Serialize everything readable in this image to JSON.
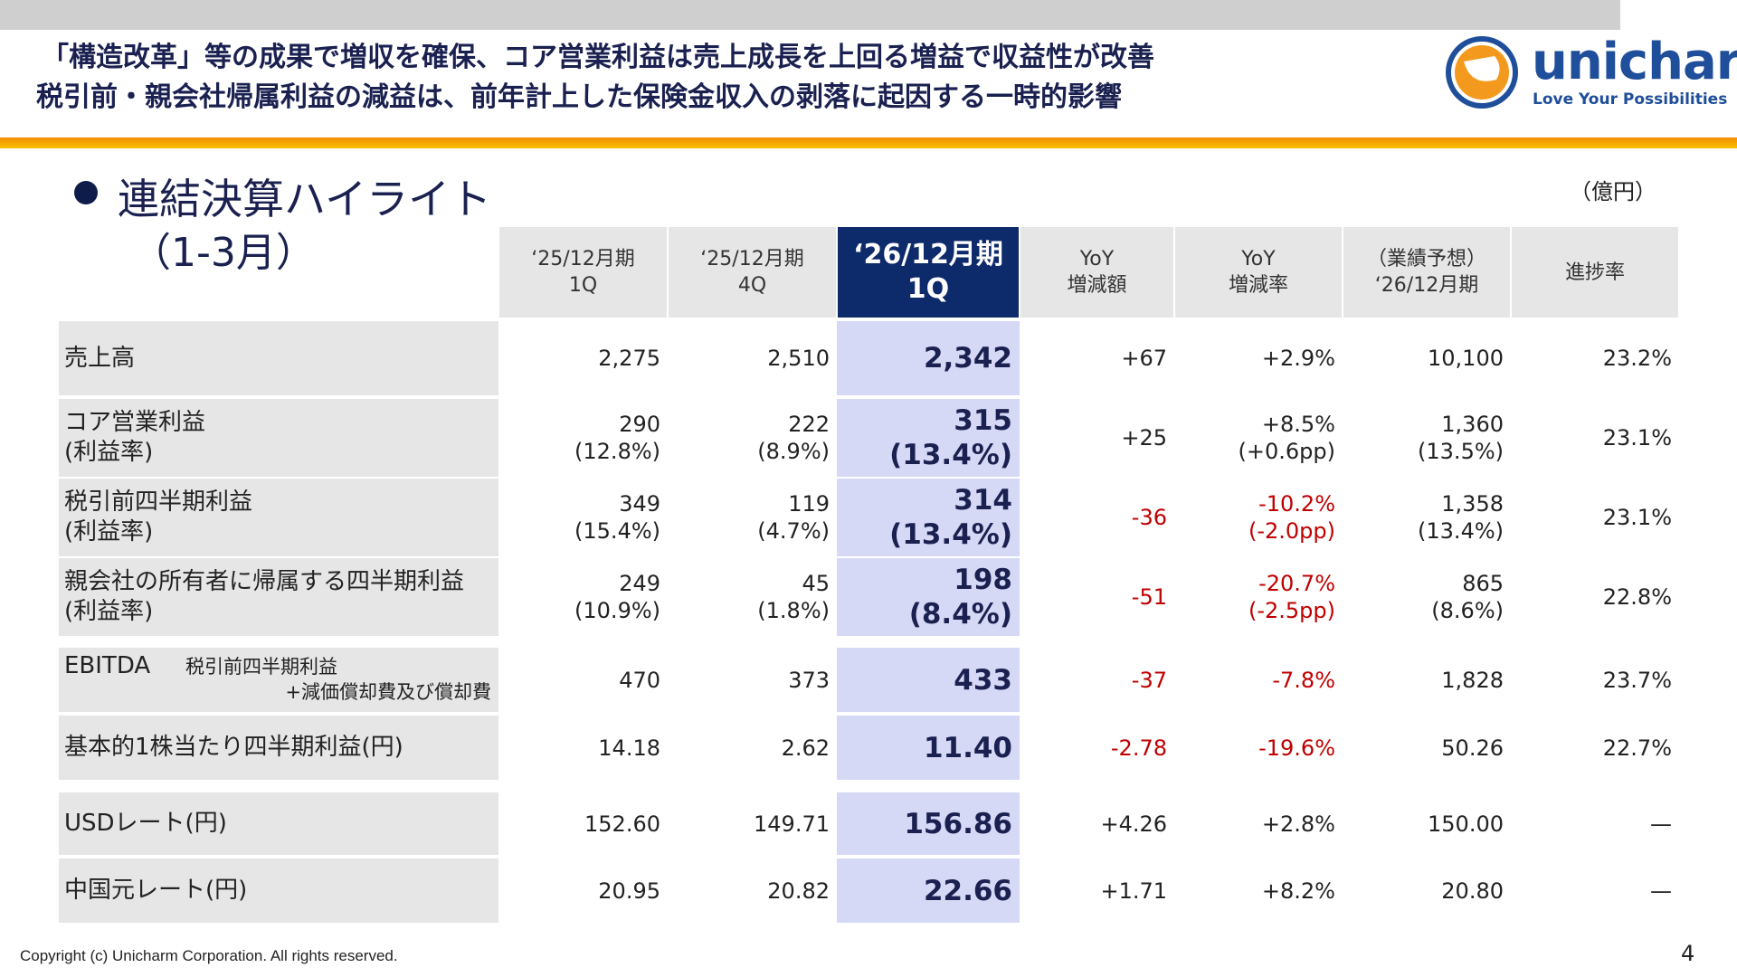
{
  "header": {
    "title_lines": [
      "「構造改革」等の成果で増収を確保、コア営業利益は売上成長を上回る増益で収益性が改善",
      "税引前・親会社帰属利益の減益は、前年計上した保険金収入の剥落に起因する一時的影響"
    ],
    "logo": {
      "name": "unicharm",
      "tagline": "Love Your Possibilities"
    }
  },
  "section": {
    "title": "連結決算ハイライト",
    "subtitle": "（1-3月）",
    "unit": "（億円）"
  },
  "table": {
    "columns": [
      [
        "‘25/12月期",
        "1Q"
      ],
      [
        "‘25/12月期",
        "4Q"
      ],
      [
        "‘26/12月期",
        "1Q"
      ],
      [
        "YoY",
        "増減額"
      ],
      [
        "YoY",
        "増減率"
      ],
      [
        "（業績予想）",
        "‘26/12月期"
      ],
      [
        "進捗率"
      ]
    ],
    "rows": [
      {
        "label": [
          "売上高"
        ],
        "cells": [
          [
            "2,275"
          ],
          [
            "2,510"
          ],
          [
            "2,342"
          ],
          [
            "+67"
          ],
          [
            "+2.9%"
          ],
          [
            "10,100"
          ],
          [
            "23.2%"
          ]
        ]
      },
      {
        "label": [
          "コア営業利益",
          "(利益率)"
        ],
        "cells": [
          [
            "290",
            "(12.8%)"
          ],
          [
            "222",
            "(8.9%)"
          ],
          [
            "315",
            "(13.4%)"
          ],
          [
            "+25"
          ],
          [
            "+8.5%",
            "(+0.6pp)"
          ],
          [
            "1,360",
            "(13.5%)"
          ],
          [
            "23.1%"
          ]
        ]
      },
      {
        "label": [
          "税引前四半期利益",
          "(利益率)"
        ],
        "cells": [
          [
            "349",
            "(15.4%)"
          ],
          [
            "119",
            "(4.7%)"
          ],
          [
            "314",
            "(13.4%)"
          ],
          [
            "-36"
          ],
          [
            "-10.2%",
            "(-2.0pp)"
          ],
          [
            "1,358",
            "(13.4%)"
          ],
          [
            "23.1%"
          ]
        ]
      },
      {
        "label": [
          "親会社の所有者に帰属する四半期利益",
          "(利益率)"
        ],
        "cells": [
          [
            "249",
            "(10.9%)"
          ],
          [
            "45",
            "(1.8%)"
          ],
          [
            "198",
            "(8.4%)"
          ],
          [
            "-51"
          ],
          [
            "-20.7%",
            "(-2.5pp)"
          ],
          [
            "865",
            "(8.6%)"
          ],
          [
            "22.8%"
          ]
        ]
      },
      {
        "label": [
          "EBITDA"
        ],
        "note": [
          "税引前四半期利益",
          "+減価償却費及び償却費"
        ],
        "cells": [
          [
            "470"
          ],
          [
            "373"
          ],
          [
            "433"
          ],
          [
            "-37"
          ],
          [
            "-7.8%"
          ],
          [
            "1,828"
          ],
          [
            "23.7%"
          ]
        ]
      },
      {
        "label": [
          "基本的1株当たり四半期利益(円)"
        ],
        "cells": [
          [
            "14.18"
          ],
          [
            "2.62"
          ],
          [
            "11.40"
          ],
          [
            "-2.78"
          ],
          [
            "-19.6%"
          ],
          [
            "50.26"
          ],
          [
            "22.7%"
          ]
        ]
      },
      {
        "label": [
          "USDレート(円)"
        ],
        "cells": [
          [
            "152.60"
          ],
          [
            "149.71"
          ],
          [
            "156.86"
          ],
          [
            "+4.26"
          ],
          [
            "+2.8%"
          ],
          [
            "150.00"
          ],
          [
            "—"
          ]
        ]
      },
      {
        "label": [
          "中国元レート(円)"
        ],
        "cells": [
          [
            "20.95"
          ],
          [
            "20.82"
          ],
          [
            "22.66"
          ],
          [
            "+1.71"
          ],
          [
            "+8.2%"
          ],
          [
            "20.80"
          ],
          [
            "—"
          ]
        ]
      }
    ]
  },
  "footer": {
    "copyright": "Copyright (c) Unicharm Corporation. All rights reserved.",
    "page": "4"
  }
}
